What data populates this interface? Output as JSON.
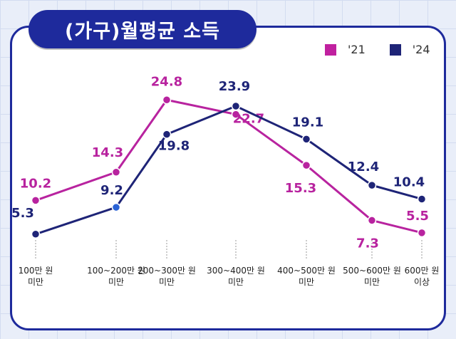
{
  "chart_data": {
    "type": "line",
    "title": "(가구)월평균 소득",
    "categories": [
      [
        "100만 원",
        "미만"
      ],
      [
        "100~200만 원",
        "미만"
      ],
      [
        "200~300만 원",
        "미만"
      ],
      [
        "300~400만 원",
        "미만"
      ],
      [
        "400~500만 원",
        "미만"
      ],
      [
        "500~600만 원",
        "미만"
      ],
      [
        "600만 원",
        "이상"
      ]
    ],
    "series": [
      {
        "name": "'21",
        "color": "#b8239f",
        "values": [
          10.2,
          14.3,
          24.8,
          22.7,
          15.3,
          7.3,
          5.5
        ]
      },
      {
        "name": "'24",
        "color": "#1e2477",
        "values": [
          5.3,
          9.2,
          19.8,
          23.9,
          19.1,
          12.4,
          10.4
        ]
      }
    ],
    "ylim": [
      0,
      30
    ],
    "grid": false,
    "legend_position": "top-right"
  }
}
